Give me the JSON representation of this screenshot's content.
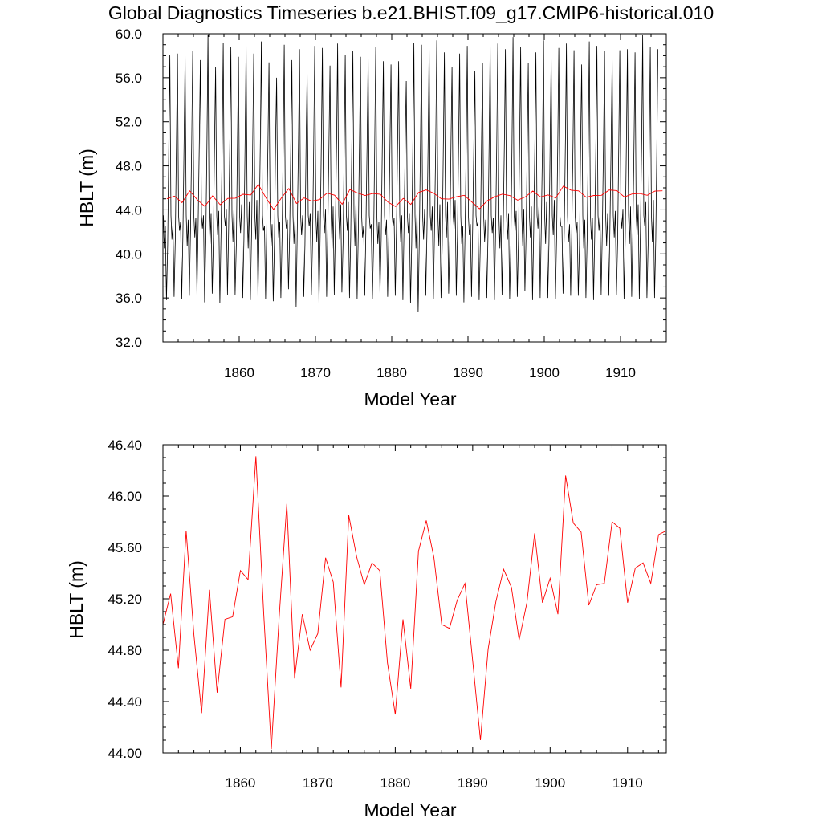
{
  "title": "Global Diagnostics Timeseries b.e21.BHIST.f09_g17.CMIP6-historical.010",
  "colors": {
    "monthly": "#000000",
    "annual": "#ff0000",
    "axes": "#000000",
    "background": "#ffffff"
  },
  "chart_data": [
    {
      "type": "line",
      "xlabel": "Model Year",
      "ylabel": "HBLT (m)",
      "xlim": [
        1850,
        1916
      ],
      "ylim": [
        32.0,
        60.0
      ],
      "xticks": [
        "1860",
        "1870",
        "1880",
        "1890",
        "1900",
        "1910"
      ],
      "yticks": [
        "32.0",
        "36.0",
        "40.0",
        "44.0",
        "48.0",
        "52.0",
        "56.0",
        "60.0"
      ],
      "grid": false,
      "series": [
        {
          "color": "#000000",
          "description": "monthly values, strong seasonal cycle",
          "annual_peaks": [
            58.1,
            58.2,
            58.0,
            58.4,
            57.6,
            59.9,
            57.0,
            59.2,
            58.8,
            57.9,
            58.9,
            58.2,
            59.3,
            57.4,
            56.0,
            59.0,
            57.6,
            58.6,
            56.4,
            58.9,
            58.7,
            57.1,
            59.1,
            58.1,
            58.4,
            57.9,
            57.8,
            58.8,
            57.5,
            57.2,
            57.5,
            55.7,
            59.2,
            59.0,
            58.7,
            59.4,
            58.3,
            57.0,
            58.2,
            58.9,
            56.6,
            57.3,
            59.0,
            59.1,
            58.6,
            59.7,
            58.8,
            57.3,
            58.3,
            59.4,
            57.8,
            58.7,
            59.1,
            58.5,
            57.2,
            59.3,
            58.9,
            58.4,
            57.7,
            58.5,
            58.6,
            58.3,
            59.9,
            58.8,
            58.6
          ],
          "annual_troughs": [
            35.8,
            36.1,
            35.9,
            36.2,
            36.3,
            35.6,
            36.4,
            35.5,
            36.3,
            36.3,
            36.0,
            35.8,
            36.1,
            35.9,
            35.7,
            36.0,
            36.8,
            35.2,
            36.1,
            36.3,
            35.5,
            36.1,
            36.3,
            36.5,
            36.0,
            35.9,
            36.2,
            35.9,
            36.4,
            36.1,
            36.2,
            35.8,
            35.5,
            34.7,
            36.2,
            35.9,
            36.0,
            36.4,
            36.2,
            35.6,
            36.1,
            35.8,
            36.0,
            35.8,
            36.3,
            35.9,
            36.1,
            36.6,
            35.8,
            36.0,
            36.0,
            35.9,
            36.4,
            36.2,
            36.2,
            36.0,
            35.8,
            36.3,
            36.2,
            36.3,
            35.9,
            36.1,
            35.9,
            36.0,
            36.0
          ]
        },
        {
          "color": "#ff0000",
          "description": "annual mean",
          "ref": "annual_mean"
        }
      ]
    },
    {
      "type": "line",
      "xlabel": "Model Year",
      "ylabel": "HBLT (m)",
      "xlim": [
        1850,
        1915
      ],
      "ylim": [
        44.0,
        46.4
      ],
      "xticks": [
        "1860",
        "1870",
        "1880",
        "1890",
        "1900",
        "1910"
      ],
      "yticks": [
        "44.00",
        "44.40",
        "44.80",
        "45.20",
        "45.60",
        "46.00",
        "46.40"
      ],
      "grid": false,
      "series": [
        {
          "color": "#ff0000",
          "description": "annual mean",
          "ref": "annual_mean"
        }
      ]
    }
  ],
  "annual_mean": {
    "x": [
      1850,
      1851,
      1852,
      1853,
      1854,
      1855,
      1856,
      1857,
      1858,
      1859,
      1860,
      1861,
      1862,
      1863,
      1864,
      1865,
      1866,
      1867,
      1868,
      1869,
      1870,
      1871,
      1872,
      1873,
      1874,
      1875,
      1876,
      1877,
      1878,
      1879,
      1880,
      1881,
      1882,
      1883,
      1884,
      1885,
      1886,
      1887,
      1888,
      1889,
      1890,
      1891,
      1892,
      1893,
      1894,
      1895,
      1896,
      1897,
      1898,
      1899,
      1900,
      1901,
      1902,
      1903,
      1904,
      1905,
      1906,
      1907,
      1908,
      1909,
      1910,
      1911,
      1912,
      1913,
      1914,
      1915
    ],
    "y": [
      45.0,
      45.24,
      44.66,
      45.73,
      44.92,
      44.31,
      45.27,
      44.47,
      45.04,
      45.06,
      45.42,
      45.35,
      46.31,
      45.1,
      44.03,
      45.05,
      45.94,
      44.58,
      45.08,
      44.8,
      44.93,
      45.52,
      45.33,
      44.51,
      45.85,
      45.53,
      45.31,
      45.48,
      45.42,
      44.7,
      44.3,
      45.04,
      44.5,
      45.57,
      45.81,
      45.52,
      45.0,
      44.97,
      45.19,
      45.32,
      44.72,
      44.1,
      44.81,
      45.18,
      45.43,
      45.29,
      44.88,
      45.17,
      45.71,
      45.17,
      45.36,
      45.08,
      46.16,
      45.79,
      45.72,
      45.15,
      45.31,
      45.32,
      45.8,
      45.75,
      45.17,
      45.44,
      45.48,
      45.32,
      45.7,
      45.73
    ]
  }
}
